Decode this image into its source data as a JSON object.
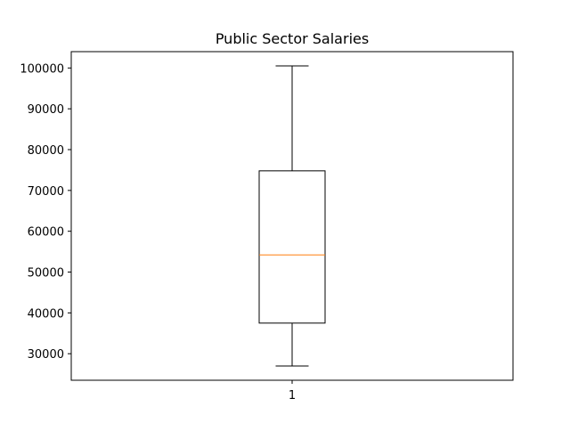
{
  "chart_data": {
    "type": "box",
    "title": "Public Sector Salaries",
    "xlabel": "",
    "ylabel": "",
    "categories": [
      "1"
    ],
    "boxes": [
      {
        "category": "1",
        "whisker_low": 27000,
        "q1": 37500,
        "median": 54200,
        "q3": 74800,
        "whisker_high": 100500
      }
    ],
    "ylim": [
      23500,
      104000
    ],
    "yticks": [
      30000,
      40000,
      50000,
      60000,
      70000,
      80000,
      90000,
      100000
    ],
    "ytick_labels": [
      "30000",
      "40000",
      "50000",
      "60000",
      "70000",
      "80000",
      "90000",
      "100000"
    ],
    "grid": false,
    "colors": {
      "box": "#000000",
      "median": "#ff7f0e"
    }
  }
}
